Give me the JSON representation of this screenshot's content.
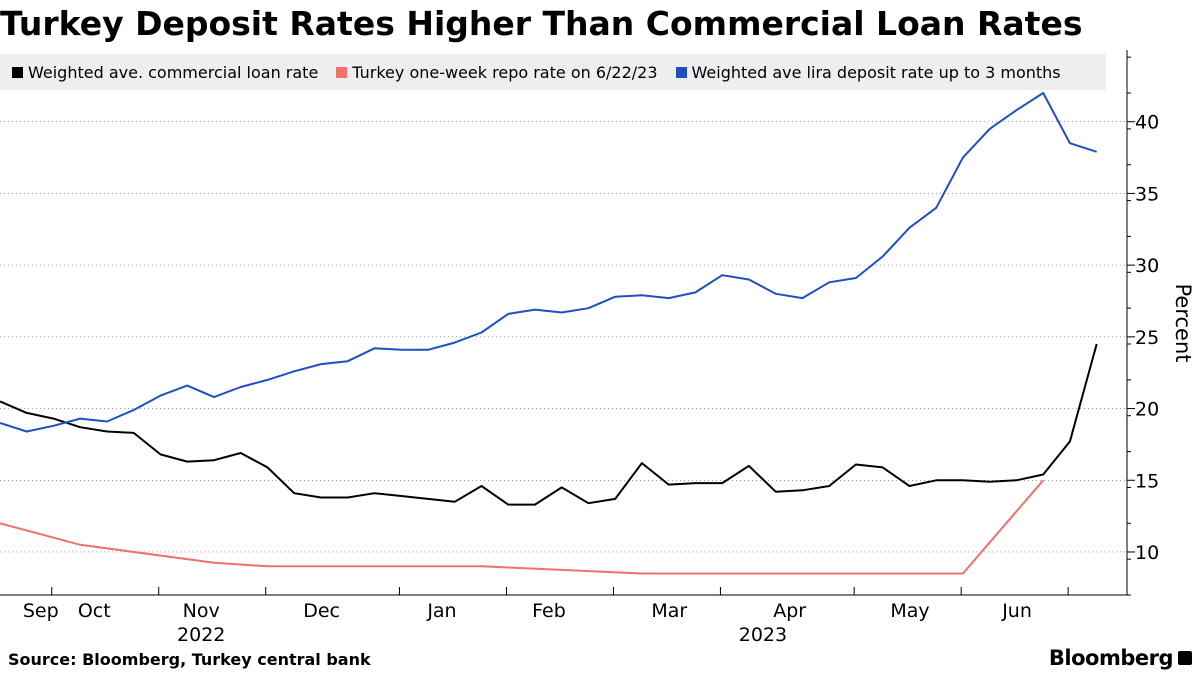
{
  "title": "Turkey Deposit Rates Higher Than Commercial Loan Rates",
  "source": "Source: Bloomberg, Turkey central bank",
  "brand": "Bloomberg",
  "colors": {
    "loan": "#000000",
    "repo": "#f0706a",
    "deposit": "#1f4fc1",
    "legend_bg": "#eeeeee",
    "grid": "#000000"
  },
  "chart_data": {
    "type": "line",
    "title": "Turkey Deposit Rates Higher Than Commercial Loan Rates",
    "ylabel": "Percent",
    "ylim": [
      7,
      45
    ],
    "xlim_weeks": [
      -1,
      40.2
    ],
    "yticks": [
      10,
      15,
      20,
      25,
      30,
      35,
      40
    ],
    "month_labels": [
      {
        "label": "Sep",
        "week": 0
      },
      {
        "label": "Oct",
        "week": 2
      },
      {
        "label": "Nov",
        "week": 6
      },
      {
        "label": "Dec",
        "week": 10.5
      },
      {
        "label": "Jan",
        "week": 15
      },
      {
        "label": "Feb",
        "week": 19
      },
      {
        "label": "Mar",
        "week": 23.5
      },
      {
        "label": "Apr",
        "week": 28
      },
      {
        "label": "May",
        "week": 32.5
      },
      {
        "label": "Jun",
        "week": 36.5
      }
    ],
    "year_labels": [
      {
        "label": "2022",
        "week": 6
      },
      {
        "label": "2023",
        "week": 27
      }
    ],
    "x_ticks_weeks": [
      0,
      4,
      8,
      13,
      17,
      21,
      25,
      30,
      34,
      38
    ],
    "legend": [
      "Weighted ave. commercial loan rate",
      "Turkey one-week repo rate on 6/22/23",
      "Weighted ave lira deposit rate up to 3 months"
    ],
    "series": [
      {
        "name": "Weighted ave. commercial loan rate",
        "key": "loan",
        "x": [
          -1,
          0,
          1,
          2,
          3,
          4,
          5,
          6,
          7,
          8,
          9,
          10,
          11,
          12,
          13,
          14,
          15,
          16,
          17,
          18,
          19,
          20,
          21,
          22,
          23,
          24,
          25,
          26,
          27,
          28,
          29,
          30,
          31,
          32,
          33,
          34,
          35,
          36,
          37,
          38,
          39,
          40
        ],
        "values": [
          20.5,
          19.7,
          19.3,
          18.7,
          18.4,
          18.3,
          16.8,
          16.3,
          16.4,
          16.9,
          15.9,
          14.1,
          13.8,
          13.8,
          14.1,
          13.9,
          13.7,
          13.5,
          14.6,
          13.3,
          13.3,
          14.5,
          13.4,
          13.7,
          16.2,
          14.7,
          14.8,
          14.8,
          16.0,
          14.2,
          14.3,
          14.6,
          16.1,
          15.9,
          14.6,
          15.0,
          15.0,
          14.9,
          15.0,
          15.4,
          17.7,
          24.5
        ]
      },
      {
        "name": "Turkey one-week repo rate on 6/22/23",
        "key": "repo",
        "x": [
          -1,
          2,
          7,
          9,
          15,
          17,
          20,
          23,
          27,
          30,
          35,
          38
        ],
        "values": [
          12.0,
          10.5,
          9.25,
          9.0,
          9.0,
          9.0,
          8.75,
          8.5,
          8.5,
          8.5,
          8.5,
          15.0
        ]
      },
      {
        "name": "Weighted ave lira deposit rate up to 3 months",
        "key": "deposit",
        "x": [
          -1,
          0,
          1,
          2,
          3,
          4,
          5,
          6,
          7,
          8,
          9,
          10,
          11,
          12,
          13,
          14,
          15,
          16,
          17,
          18,
          19,
          20,
          21,
          22,
          23,
          24,
          25,
          26,
          27,
          28,
          29,
          30,
          31,
          32,
          33,
          34,
          35,
          36,
          37,
          38,
          39,
          40
        ],
        "values": [
          19.0,
          18.4,
          18.8,
          19.3,
          19.1,
          19.9,
          20.9,
          21.6,
          20.8,
          21.5,
          22.0,
          22.6,
          23.1,
          23.3,
          24.2,
          24.1,
          24.1,
          24.6,
          25.3,
          26.6,
          26.9,
          26.7,
          27.0,
          27.8,
          27.9,
          27.7,
          28.1,
          29.3,
          29.0,
          28.0,
          27.7,
          28.8,
          29.1,
          30.6,
          32.6,
          34.0,
          37.5,
          39.5,
          40.8,
          42.0,
          38.5,
          37.9
        ]
      }
    ]
  }
}
